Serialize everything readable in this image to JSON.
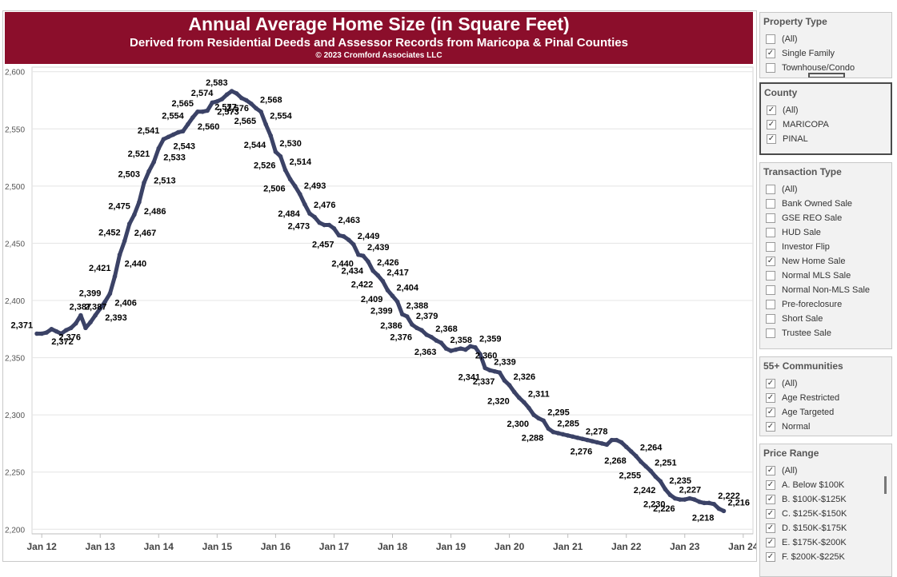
{
  "header": {
    "title": "Annual Average Home Size (in Square Feet)",
    "subtitle": "Derived from Residential Deeds and Assessor Records from Maricopa & Pinal Counties",
    "copyright": "© 2023 Cromford Associates LLC"
  },
  "colors": {
    "header_bg": "#8b0e2b",
    "line": "#3b4266"
  },
  "chart_data": {
    "type": "line",
    "title": "Annual Average Home Size (in Square Feet)",
    "ylim": [
      2196,
      2604
    ],
    "y_ticks": [
      2200,
      2250,
      2300,
      2350,
      2400,
      2450,
      2500,
      2550,
      2600
    ],
    "y_tick_labels": [
      "2,200",
      "2,250",
      "2,300",
      "2,350",
      "2,400",
      "2,450",
      "2,500",
      "2,550",
      "2,600"
    ],
    "x_ticks": [
      "Jan 12",
      "Jan 13",
      "Jan 14",
      "Jan 15",
      "Jan 16",
      "Jan 17",
      "Jan 18",
      "Jan 19",
      "Jan 20",
      "Jan 21",
      "Jan 22",
      "Jan 23",
      "Jan 24"
    ],
    "x_range": [
      "2011-11",
      "2024-03"
    ],
    "grid": true,
    "series": [
      {
        "points": [
          {
            "x": "2011-12",
            "y": 2371,
            "label": "2,371"
          },
          {
            "x": "2012-01",
            "y": 2371
          },
          {
            "x": "2012-02",
            "y": 2372,
            "label": "2,372"
          },
          {
            "x": "2012-03",
            "y": 2375
          },
          {
            "x": "2012-04",
            "y": 2373
          },
          {
            "x": "2012-05",
            "y": 2371
          },
          {
            "x": "2012-06",
            "y": 2374
          },
          {
            "x": "2012-07",
            "y": 2376
          },
          {
            "x": "2012-08",
            "y": 2380
          },
          {
            "x": "2012-09",
            "y": 2387,
            "label": "2,387"
          },
          {
            "x": "2012-10",
            "y": 2376,
            "label": "2,376"
          },
          {
            "x": "2012-11",
            "y": 2381
          },
          {
            "x": "2012-12",
            "y": 2387,
            "label": "2,387"
          },
          {
            "x": "2013-01",
            "y": 2393,
            "label": "2,393"
          },
          {
            "x": "2013-02",
            "y": 2399,
            "label": "2,399"
          },
          {
            "x": "2013-03",
            "y": 2406,
            "label": "2,406"
          },
          {
            "x": "2013-04",
            "y": 2421,
            "label": "2,421"
          },
          {
            "x": "2013-05",
            "y": 2440,
            "label": "2,440"
          },
          {
            "x": "2013-06",
            "y": 2452,
            "label": "2,452"
          },
          {
            "x": "2013-07",
            "y": 2467,
            "label": "2,467"
          },
          {
            "x": "2013-08",
            "y": 2475,
            "label": "2,475"
          },
          {
            "x": "2013-09",
            "y": 2486,
            "label": "2,486"
          },
          {
            "x": "2013-10",
            "y": 2503,
            "label": "2,503"
          },
          {
            "x": "2013-11",
            "y": 2513,
            "label": "2,513"
          },
          {
            "x": "2013-12",
            "y": 2521,
            "label": "2,521"
          },
          {
            "x": "2014-01",
            "y": 2533,
            "label": "2,533"
          },
          {
            "x": "2014-02",
            "y": 2541,
            "label": "2,541"
          },
          {
            "x": "2014-03",
            "y": 2543,
            "label": "2,543"
          },
          {
            "x": "2014-04",
            "y": 2545
          },
          {
            "x": "2014-05",
            "y": 2547
          },
          {
            "x": "2014-06",
            "y": 2548
          },
          {
            "x": "2014-07",
            "y": 2554,
            "label": "2,554"
          },
          {
            "x": "2014-08",
            "y": 2560,
            "label": "2,560"
          },
          {
            "x": "2014-09",
            "y": 2565,
            "label": "2,565"
          },
          {
            "x": "2014-10",
            "y": 2565
          },
          {
            "x": "2014-11",
            "y": 2566
          },
          {
            "x": "2014-12",
            "y": 2573,
            "label": "2,573"
          },
          {
            "x": "2015-01",
            "y": 2574,
            "label": "2,574"
          },
          {
            "x": "2015-02",
            "y": 2576,
            "label": "2,576"
          },
          {
            "x": "2015-03",
            "y": 2580
          },
          {
            "x": "2015-04",
            "y": 2583,
            "label": "2,583"
          },
          {
            "x": "2015-05",
            "y": 2581
          },
          {
            "x": "2015-06",
            "y": 2577,
            "label": "2,577"
          },
          {
            "x": "2015-07",
            "y": 2575
          },
          {
            "x": "2015-08",
            "y": 2572
          },
          {
            "x": "2015-09",
            "y": 2568,
            "label": "2,568"
          },
          {
            "x": "2015-10",
            "y": 2565,
            "label": "2,565"
          },
          {
            "x": "2015-11",
            "y": 2554,
            "label": "2,554"
          },
          {
            "x": "2015-12",
            "y": 2544,
            "label": "2,544"
          },
          {
            "x": "2016-01",
            "y": 2530,
            "label": "2,530"
          },
          {
            "x": "2016-02",
            "y": 2526,
            "label": "2,526"
          },
          {
            "x": "2016-03",
            "y": 2514,
            "label": "2,514"
          },
          {
            "x": "2016-04",
            "y": 2506,
            "label": "2,506"
          },
          {
            "x": "2016-05",
            "y": 2500
          },
          {
            "x": "2016-06",
            "y": 2493,
            "label": "2,493"
          },
          {
            "x": "2016-07",
            "y": 2484,
            "label": "2,484"
          },
          {
            "x": "2016-08",
            "y": 2476,
            "label": "2,476"
          },
          {
            "x": "2016-09",
            "y": 2473,
            "label": "2,473"
          },
          {
            "x": "2016-10",
            "y": 2468
          },
          {
            "x": "2016-11",
            "y": 2466
          },
          {
            "x": "2016-12",
            "y": 2466
          },
          {
            "x": "2017-01",
            "y": 2463,
            "label": "2,463"
          },
          {
            "x": "2017-02",
            "y": 2457,
            "label": "2,457"
          },
          {
            "x": "2017-03",
            "y": 2456
          },
          {
            "x": "2017-04",
            "y": 2453
          },
          {
            "x": "2017-05",
            "y": 2449,
            "label": "2,449"
          },
          {
            "x": "2017-06",
            "y": 2440,
            "label": "2,440"
          },
          {
            "x": "2017-07",
            "y": 2439,
            "label": "2,439"
          },
          {
            "x": "2017-08",
            "y": 2434,
            "label": "2,434"
          },
          {
            "x": "2017-09",
            "y": 2426,
            "label": "2,426"
          },
          {
            "x": "2017-10",
            "y": 2422,
            "label": "2,422"
          },
          {
            "x": "2017-11",
            "y": 2417,
            "label": "2,417"
          },
          {
            "x": "2017-12",
            "y": 2409,
            "label": "2,409"
          },
          {
            "x": "2018-01",
            "y": 2404,
            "label": "2,404"
          },
          {
            "x": "2018-02",
            "y": 2399,
            "label": "2,399"
          },
          {
            "x": "2018-03",
            "y": 2388,
            "label": "2,388"
          },
          {
            "x": "2018-04",
            "y": 2386,
            "label": "2,386"
          },
          {
            "x": "2018-05",
            "y": 2379,
            "label": "2,379"
          },
          {
            "x": "2018-06",
            "y": 2376,
            "label": "2,376"
          },
          {
            "x": "2018-07",
            "y": 2374
          },
          {
            "x": "2018-08",
            "y": 2370
          },
          {
            "x": "2018-09",
            "y": 2368,
            "label": "2,368"
          },
          {
            "x": "2018-10",
            "y": 2365
          },
          {
            "x": "2018-11",
            "y": 2363,
            "label": "2,363"
          },
          {
            "x": "2018-12",
            "y": 2358,
            "label": "2,358"
          },
          {
            "x": "2019-01",
            "y": 2356
          },
          {
            "x": "2019-02",
            "y": 2357
          },
          {
            "x": "2019-03",
            "y": 2358
          },
          {
            "x": "2019-04",
            "y": 2357
          },
          {
            "x": "2019-05",
            "y": 2360,
            "label": "2,360"
          },
          {
            "x": "2019-06",
            "y": 2359,
            "label": "2,359"
          },
          {
            "x": "2019-07",
            "y": 2353
          },
          {
            "x": "2019-08",
            "y": 2341,
            "label": "2,341"
          },
          {
            "x": "2019-09",
            "y": 2339,
            "label": "2,339"
          },
          {
            "x": "2019-10",
            "y": 2338
          },
          {
            "x": "2019-11",
            "y": 2337,
            "label": "2,337"
          },
          {
            "x": "2019-12",
            "y": 2330
          },
          {
            "x": "2020-01",
            "y": 2326,
            "label": "2,326"
          },
          {
            "x": "2020-02",
            "y": 2320,
            "label": "2,320"
          },
          {
            "x": "2020-03",
            "y": 2315
          },
          {
            "x": "2020-04",
            "y": 2311,
            "label": "2,311"
          },
          {
            "x": "2020-05",
            "y": 2306
          },
          {
            "x": "2020-06",
            "y": 2300,
            "label": "2,300"
          },
          {
            "x": "2020-07",
            "y": 2297
          },
          {
            "x": "2020-08",
            "y": 2295,
            "label": "2,295"
          },
          {
            "x": "2020-09",
            "y": 2288,
            "label": "2,288"
          },
          {
            "x": "2020-10",
            "y": 2285,
            "label": "2,285"
          },
          {
            "x": "2020-11",
            "y": 2284
          },
          {
            "x": "2020-12",
            "y": 2283
          },
          {
            "x": "2021-01",
            "y": 2282
          },
          {
            "x": "2021-02",
            "y": 2281
          },
          {
            "x": "2021-03",
            "y": 2280
          },
          {
            "x": "2021-04",
            "y": 2279
          },
          {
            "x": "2021-05",
            "y": 2278
          },
          {
            "x": "2021-06",
            "y": 2277
          },
          {
            "x": "2021-07",
            "y": 2276,
            "label": "2,276"
          },
          {
            "x": "2021-08",
            "y": 2275
          },
          {
            "x": "2021-09",
            "y": 2274
          },
          {
            "x": "2021-10",
            "y": 2278,
            "label": "2,278"
          },
          {
            "x": "2021-11",
            "y": 2278
          },
          {
            "x": "2021-12",
            "y": 2276
          },
          {
            "x": "2022-01",
            "y": 2272
          },
          {
            "x": "2022-02",
            "y": 2268,
            "label": "2,268"
          },
          {
            "x": "2022-03",
            "y": 2264,
            "label": "2,264"
          },
          {
            "x": "2022-04",
            "y": 2259
          },
          {
            "x": "2022-05",
            "y": 2255,
            "label": "2,255"
          },
          {
            "x": "2022-06",
            "y": 2251,
            "label": "2,251"
          },
          {
            "x": "2022-07",
            "y": 2246
          },
          {
            "x": "2022-08",
            "y": 2242,
            "label": "2,242"
          },
          {
            "x": "2022-09",
            "y": 2235,
            "label": "2,235"
          },
          {
            "x": "2022-10",
            "y": 2230,
            "label": "2,230"
          },
          {
            "x": "2022-11",
            "y": 2227,
            "label": "2,227"
          },
          {
            "x": "2022-12",
            "y": 2226,
            "label": "2,226"
          },
          {
            "x": "2023-01",
            "y": 2226
          },
          {
            "x": "2023-02",
            "y": 2227
          },
          {
            "x": "2023-03",
            "y": 2226
          },
          {
            "x": "2023-04",
            "y": 2224
          },
          {
            "x": "2023-05",
            "y": 2223
          },
          {
            "x": "2023-06",
            "y": 2223
          },
          {
            "x": "2023-07",
            "y": 2222,
            "label": "2,222"
          },
          {
            "x": "2023-08",
            "y": 2218,
            "label": "2,218"
          },
          {
            "x": "2023-09",
            "y": 2216,
            "label": "2,216"
          }
        ]
      }
    ]
  },
  "filters": [
    {
      "key": "property_type",
      "title": "Property Type",
      "options": [
        {
          "label": "(All)",
          "checked": false
        },
        {
          "label": "Single Family",
          "checked": true
        },
        {
          "label": "Townhouse/Condo",
          "checked": false
        }
      ]
    },
    {
      "key": "county",
      "title": "County",
      "options": [
        {
          "label": "(All)",
          "checked": true
        },
        {
          "label": "MARICOPA",
          "checked": true
        },
        {
          "label": "PINAL",
          "checked": true
        }
      ]
    },
    {
      "key": "transaction_type",
      "title": "Transaction Type",
      "options": [
        {
          "label": "(All)",
          "checked": false
        },
        {
          "label": "Bank Owned Sale",
          "checked": false
        },
        {
          "label": "GSE REO Sale",
          "checked": false
        },
        {
          "label": "HUD Sale",
          "checked": false
        },
        {
          "label": "Investor Flip",
          "checked": false
        },
        {
          "label": "New Home Sale",
          "checked": true
        },
        {
          "label": "Normal MLS Sale",
          "checked": false
        },
        {
          "label": "Normal Non-MLS Sale",
          "checked": false
        },
        {
          "label": "Pre-foreclosure",
          "checked": false
        },
        {
          "label": "Short Sale",
          "checked": false
        },
        {
          "label": "Trustee Sale",
          "checked": false
        }
      ]
    },
    {
      "key": "communities_55",
      "title": "55+ Communities",
      "options": [
        {
          "label": "(All)",
          "checked": true
        },
        {
          "label": "Age Restricted",
          "checked": true
        },
        {
          "label": "Age Targeted",
          "checked": true
        },
        {
          "label": "Normal",
          "checked": true
        }
      ]
    },
    {
      "key": "price_range",
      "title": "Price Range",
      "options": [
        {
          "label": "(All)",
          "checked": true
        },
        {
          "label": "A. Below $100K",
          "checked": true
        },
        {
          "label": "B. $100K-$125K",
          "checked": true
        },
        {
          "label": "C. $125K-$150K",
          "checked": true
        },
        {
          "label": "D. $150K-$175K",
          "checked": true
        },
        {
          "label": "E. $175K-$200K",
          "checked": true
        },
        {
          "label": "F. $200K-$225K",
          "checked": true
        }
      ]
    }
  ]
}
